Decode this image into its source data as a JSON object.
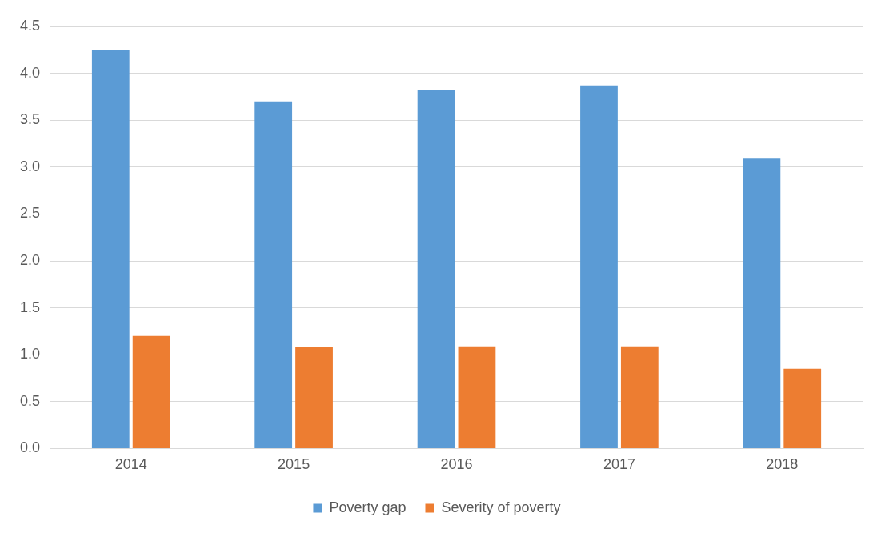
{
  "chart_data": {
    "type": "bar",
    "categories": [
      "2014",
      "2015",
      "2016",
      "2017",
      "2018"
    ],
    "series": [
      {
        "name": "Poverty gap",
        "color": "#5b9bd5",
        "values": [
          4.25,
          3.7,
          3.82,
          3.87,
          3.09
        ]
      },
      {
        "name": "Severity of poverty",
        "color": "#ed7d31",
        "values": [
          1.2,
          1.08,
          1.09,
          1.09,
          0.85
        ]
      }
    ],
    "ylim": [
      0,
      4.5
    ],
    "yticks": [
      {
        "value": 0,
        "label": "0.0"
      },
      {
        "value": 0.5,
        "label": "0.5"
      },
      {
        "value": 1,
        "label": "1.0"
      },
      {
        "value": 1.5,
        "label": "1.5"
      },
      {
        "value": 2,
        "label": "2.0"
      },
      {
        "value": 2.5,
        "label": "2.5"
      },
      {
        "value": 3,
        "label": "3.0"
      },
      {
        "value": 3.5,
        "label": "3.5"
      },
      {
        "value": 4,
        "label": "4.0"
      },
      {
        "value": 4.5,
        "label": "4.5"
      }
    ],
    "grid": "y",
    "legend": "bottom"
  }
}
